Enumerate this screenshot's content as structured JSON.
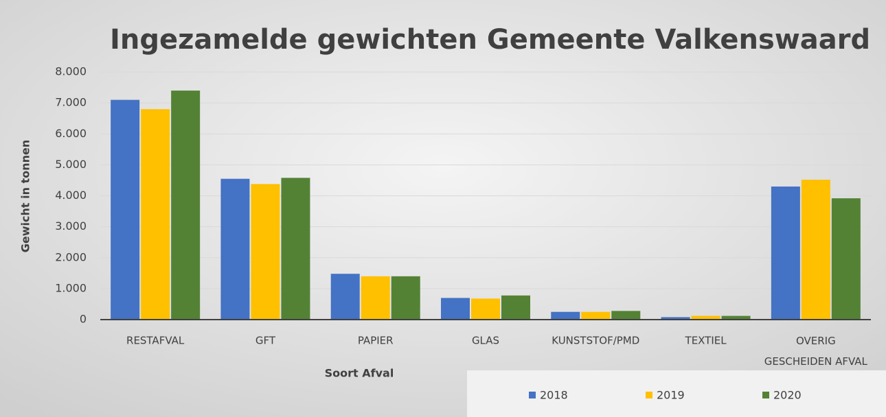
{
  "chart_data": {
    "type": "bar",
    "title": "Ingezamelde gewichten Gemeente Valkenswaard",
    "y_label": "Gewicht in tonnen",
    "x_label": "Soort Afval",
    "categories": [
      "RESTAFVAL",
      "GFT",
      "PAPIER",
      "GLAS",
      "KUNSTSTOF/PMD",
      "TEXTIEL",
      "OVERIG GESCHEIDEN AFVAL"
    ],
    "series": [
      {
        "name": "2018",
        "color": "#4472c4",
        "values": [
          7100,
          4550,
          1480,
          700,
          250,
          80,
          4300
        ]
      },
      {
        "name": "2019",
        "color": "#ffc000",
        "values": [
          6800,
          4380,
          1400,
          680,
          250,
          120,
          4520
        ]
      },
      {
        "name": "2020",
        "color": "#548235",
        "values": [
          7400,
          4580,
          1400,
          780,
          280,
          120,
          3920
        ]
      }
    ],
    "ylim": [
      0,
      8000
    ],
    "yticks": [
      0,
      {
        "value": 1000,
        "label": "1.000"
      },
      {
        "value": 2000,
        "label": "2.000"
      },
      {
        "value": 3000,
        "label": "3.000"
      },
      {
        "value": 4000,
        "label": "4.000"
      },
      {
        "value": 5000,
        "label": "5.000"
      },
      {
        "value": 6000,
        "label": "6.000"
      },
      {
        "value": 7000,
        "label": "7.000"
      },
      {
        "value": 8000,
        "label": "8.000"
      }
    ],
    "grid": true,
    "legend": "bottom-right"
  }
}
